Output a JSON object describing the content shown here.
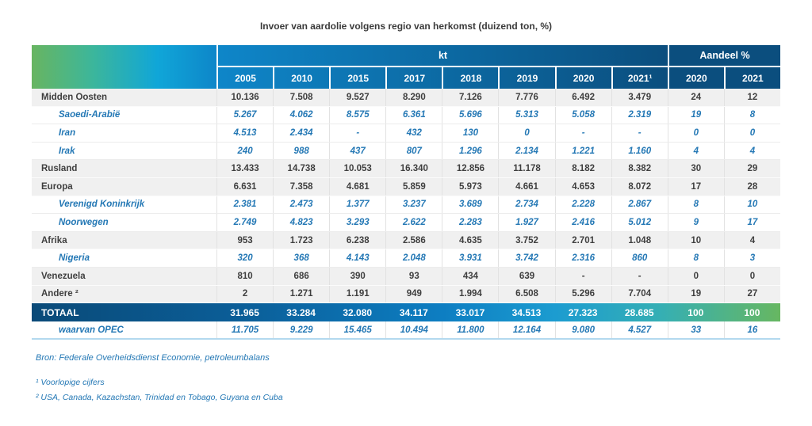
{
  "title": "Invoer van aardolie volgens regio van herkomst (duizend ton, %)",
  "table": {
    "group_headers": {
      "kt": "kt",
      "share": "Aandeel %"
    },
    "kt_years": [
      "2005",
      "2010",
      "2015",
      "2017",
      "2018",
      "2019",
      "2020",
      "2021¹"
    ],
    "share_years": [
      "2020",
      "2021"
    ],
    "rows": [
      {
        "label": "Midden Oosten",
        "type": "main",
        "values": [
          "10.136",
          "7.508",
          "9.527",
          "8.290",
          "7.126",
          "7.776",
          "6.492",
          "3.479",
          "24",
          "12"
        ]
      },
      {
        "label": "Saoedi-Arabië",
        "type": "sub",
        "values": [
          "5.267",
          "4.062",
          "8.575",
          "6.361",
          "5.696",
          "5.313",
          "5.058",
          "2.319",
          "19",
          "8"
        ]
      },
      {
        "label": "Iran",
        "type": "sub",
        "values": [
          "4.513",
          "2.434",
          "-",
          "432",
          "130",
          "0",
          "-",
          "-",
          "0",
          "0"
        ]
      },
      {
        "label": "Irak",
        "type": "sub",
        "values": [
          "240",
          "988",
          "437",
          "807",
          "1.296",
          "2.134",
          "1.221",
          "1.160",
          "4",
          "4"
        ]
      },
      {
        "label": "Rusland",
        "type": "main",
        "values": [
          "13.433",
          "14.738",
          "10.053",
          "16.340",
          "12.856",
          "11.178",
          "8.182",
          "8.382",
          "30",
          "29"
        ]
      },
      {
        "label": "Europa",
        "type": "main",
        "values": [
          "6.631",
          "7.358",
          "4.681",
          "5.859",
          "5.973",
          "4.661",
          "4.653",
          "8.072",
          "17",
          "28"
        ]
      },
      {
        "label": "Verenigd Koninkrijk",
        "type": "sub",
        "values": [
          "2.381",
          "2.473",
          "1.377",
          "3.237",
          "3.689",
          "2.734",
          "2.228",
          "2.867",
          "8",
          "10"
        ]
      },
      {
        "label": "Noorwegen",
        "type": "sub",
        "values": [
          "2.749",
          "4.823",
          "3.293",
          "2.622",
          "2.283",
          "1.927",
          "2.416",
          "5.012",
          "9",
          "17"
        ]
      },
      {
        "label": "Afrika",
        "type": "main",
        "values": [
          "953",
          "1.723",
          "6.238",
          "2.586",
          "4.635",
          "3.752",
          "2.701",
          "1.048",
          "10",
          "4"
        ]
      },
      {
        "label": "Nigeria",
        "type": "sub",
        "values": [
          "320",
          "368",
          "4.143",
          "2.048",
          "3.931",
          "3.742",
          "2.316",
          "860",
          "8",
          "3"
        ]
      },
      {
        "label": "Venezuela",
        "type": "main",
        "values": [
          "810",
          "686",
          "390",
          "93",
          "434",
          "639",
          "-",
          "-",
          "0",
          "0"
        ]
      },
      {
        "label": "Andere ²",
        "type": "main",
        "values": [
          "2",
          "1.271",
          "1.191",
          "949",
          "1.994",
          "6.508",
          "5.296",
          "7.704",
          "19",
          "27"
        ]
      },
      {
        "label": "TOTAAL",
        "type": "total",
        "values": [
          "31.965",
          "33.284",
          "32.080",
          "34.117",
          "33.017",
          "34.513",
          "27.323",
          "28.685",
          "100",
          "100"
        ]
      },
      {
        "label": "waarvan OPEC",
        "type": "sub",
        "values": [
          "11.705",
          "9.229",
          "15.465",
          "10.494",
          "11.800",
          "12.164",
          "9.080",
          "4.527",
          "33",
          "16"
        ]
      }
    ]
  },
  "footer": {
    "source": "Bron: Federale Overheidsdienst Economie, petroleumbalans",
    "note1": "¹ Voorlopige cijfers",
    "note2": "² USA, Canada, Kazachstan, Trinidad en Tobago, Guyana en Cuba"
  },
  "colors": {
    "gradient_green": "#68b561",
    "gradient_teal": "#10a6d8",
    "gradient_blue": "#0e86c9",
    "navy": "#0b4e7e",
    "sub_row_text": "#2478b5",
    "main_row_bg": "#f0f0f0",
    "main_row_text": "#3f3f3f"
  }
}
